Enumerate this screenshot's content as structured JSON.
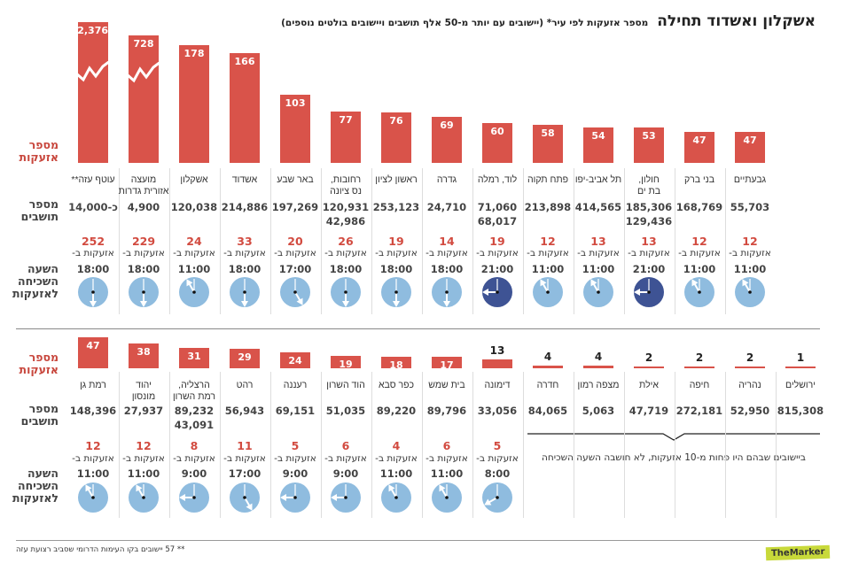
{
  "header": {
    "title": "אשקלון ואשדוד תחילה",
    "subtitle": "מספר אזעקות לפי עיר* (יישובים עם יותר מ-50 אלף תושבים ויישובים בולטים נוספים)"
  },
  "row_labels": {
    "alarms": "מספר\nאזעקות",
    "population": "מספר\nתושבים",
    "common_hour": "השעה\nהשכיחה\nלאזעקות"
  },
  "alarms_at_label": "אזעקות ב-",
  "low_count_note": "ביישובים שבהם היו פחות מ-10 אזעקות, לא חושבה השעה השכיחה",
  "footnote": "** 57 יישובים בקו העימות הדרומי שסביב רצועת עזה",
  "logo": "TheMarker",
  "colors": {
    "bar": "#d9534a",
    "count": "#d24b40",
    "clock_day": "#8fbcdf",
    "clock_night": "#3e5394"
  },
  "chart_data": {
    "type": "bar",
    "value_label": "מספר אזעקות",
    "sections": [
      {
        "cities": [
          {
            "name": "עוטף עזה**",
            "alarms": 2376,
            "axis_break": true,
            "population": [
              "כ-14,000"
            ],
            "hour_alarms": 252,
            "hour": "18:00"
          },
          {
            "name": "מועצה\nאזורית גדרות",
            "alarms": 728,
            "axis_break": true,
            "population": [
              "4,900"
            ],
            "hour_alarms": 229,
            "hour": "18:00"
          },
          {
            "name": "אשקלון",
            "alarms": 178,
            "population": [
              "120,038"
            ],
            "hour_alarms": 24,
            "hour": "11:00"
          },
          {
            "name": "אשדוד",
            "alarms": 166,
            "population": [
              "214,886"
            ],
            "hour_alarms": 33,
            "hour": "18:00"
          },
          {
            "name": "באר שבע",
            "alarms": 103,
            "population": [
              "197,269"
            ],
            "hour_alarms": 20,
            "hour": "17:00"
          },
          {
            "name": "רחובות,\nנס ציונה",
            "alarms": 77,
            "population": [
              "120,931",
              "42,986"
            ],
            "hour_alarms": 26,
            "hour": "18:00"
          },
          {
            "name": "ראשון לציון",
            "alarms": 76,
            "population": [
              "253,123"
            ],
            "hour_alarms": 19,
            "hour": "18:00"
          },
          {
            "name": "גדרה",
            "alarms": 69,
            "population": [
              "24,710"
            ],
            "hour_alarms": 14,
            "hour": "18:00"
          },
          {
            "name": "לוד, רמלה",
            "alarms": 60,
            "population": [
              "71,060",
              "68,017"
            ],
            "hour_alarms": 19,
            "hour": "21:00"
          },
          {
            "name": "פתח תקוה",
            "alarms": 58,
            "population": [
              "213,898"
            ],
            "hour_alarms": 12,
            "hour": "11:00"
          },
          {
            "name": "תל אביב-יפו",
            "alarms": 54,
            "population": [
              "414,565"
            ],
            "hour_alarms": 13,
            "hour": "11:00"
          },
          {
            "name": "חולון,\nבת ים",
            "alarms": 53,
            "population": [
              "185,306",
              "129,436"
            ],
            "hour_alarms": 13,
            "hour": "21:00"
          },
          {
            "name": "בני ברק",
            "alarms": 47,
            "population": [
              "168,769"
            ],
            "hour_alarms": 12,
            "hour": "11:00"
          },
          {
            "name": "גבעתיים",
            "alarms": 47,
            "population": [
              "55,703"
            ],
            "hour_alarms": 12,
            "hour": "11:00"
          }
        ]
      },
      {
        "cities": [
          {
            "name": "רמת גן",
            "alarms": 47,
            "population": [
              "148,396"
            ],
            "hour_alarms": 12,
            "hour": "11:00"
          },
          {
            "name": "יהוד\nמונסון",
            "alarms": 38,
            "population": [
              "27,937"
            ],
            "hour_alarms": 12,
            "hour": "11:00"
          },
          {
            "name": "הרצליה,\nרמת השרון",
            "alarms": 31,
            "population": [
              "89,232",
              "43,091"
            ],
            "hour_alarms": 8,
            "hour": "9:00"
          },
          {
            "name": "רהט",
            "alarms": 29,
            "population": [
              "56,943"
            ],
            "hour_alarms": 11,
            "hour": "17:00"
          },
          {
            "name": "רעננה",
            "alarms": 24,
            "population": [
              "69,151"
            ],
            "hour_alarms": 5,
            "hour": "9:00"
          },
          {
            "name": "הוד השרון",
            "alarms": 19,
            "population": [
              "51,035"
            ],
            "hour_alarms": 6,
            "hour": "9:00"
          },
          {
            "name": "כפר סבא",
            "alarms": 18,
            "population": [
              "89,220"
            ],
            "hour_alarms": 4,
            "hour": "11:00"
          },
          {
            "name": "בית שמש",
            "alarms": 17,
            "population": [
              "89,796"
            ],
            "hour_alarms": 6,
            "hour": "11:00"
          },
          {
            "name": "דימונה",
            "alarms": 13,
            "population": [
              "33,056"
            ],
            "hour_alarms": 5,
            "hour": "8:00"
          },
          {
            "name": "חדרה",
            "alarms": 4,
            "population": [
              "84,065"
            ]
          },
          {
            "name": "מצפה רמון",
            "alarms": 4,
            "population": [
              "5,063"
            ]
          },
          {
            "name": "אילת",
            "alarms": 2,
            "population": [
              "47,719"
            ]
          },
          {
            "name": "חיפה",
            "alarms": 2,
            "population": [
              "272,181"
            ]
          },
          {
            "name": "נהריה",
            "alarms": 2,
            "population": [
              "52,950"
            ]
          },
          {
            "name": "ירושלים",
            "alarms": 1,
            "population": [
              "815,308"
            ]
          }
        ]
      }
    ]
  }
}
